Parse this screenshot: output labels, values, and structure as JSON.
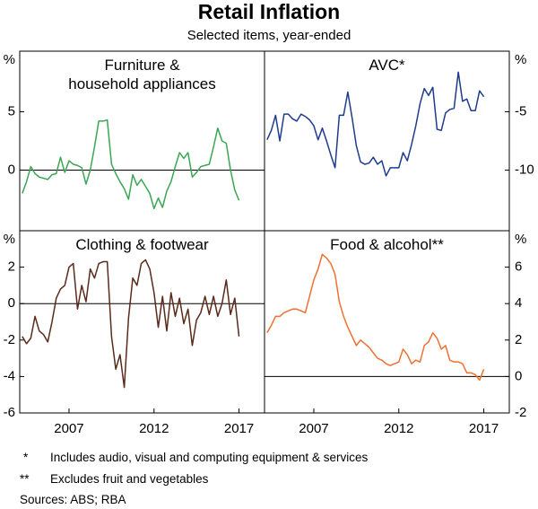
{
  "title": "Retail Inflation",
  "subtitle": "Selected items, year-ended",
  "chart_data": [
    {
      "type": "line",
      "title": "Furniture &\nhousehold appliances",
      "unit": "%",
      "xlim": [
        2004.1,
        2018.5
      ],
      "ylim": [
        -5.2,
        10.2
      ],
      "yticks": [
        5,
        0
      ],
      "zero_line": true,
      "x": [
        2004.25,
        2004.5,
        2004.75,
        2005,
        2005.25,
        2005.5,
        2005.75,
        2006,
        2006.25,
        2006.5,
        2006.75,
        2007,
        2007.25,
        2007.5,
        2007.75,
        2008,
        2008.25,
        2008.5,
        2008.75,
        2009,
        2009.25,
        2009.5,
        2009.75,
        2010,
        2010.25,
        2010.5,
        2010.75,
        2011,
        2011.25,
        2011.5,
        2011.75,
        2012,
        2012.25,
        2012.5,
        2012.75,
        2013,
        2013.25,
        2013.5,
        2013.75,
        2014,
        2014.25,
        2014.5,
        2014.75,
        2015,
        2015.25,
        2015.5,
        2015.75,
        2016,
        2016.25,
        2016.5,
        2016.75,
        2017
      ],
      "series": [
        {
          "color": "#3aa655",
          "values": [
            -2.0,
            -1.0,
            0.3,
            -0.3,
            -0.6,
            -0.7,
            -0.8,
            -0.4,
            -0.3,
            1.1,
            -0.2,
            0.8,
            0.5,
            0.4,
            0.2,
            -1.2,
            0.0,
            2.0,
            4.2,
            4.2,
            4.3,
            0.5,
            -0.3,
            -1.0,
            -1.6,
            -2.5,
            -0.4,
            -1.3,
            -0.8,
            -1.4,
            -2.0,
            -3.3,
            -2.4,
            -3.2,
            -1.8,
            -1.0,
            0.3,
            1.5,
            1.0,
            1.5,
            -0.6,
            -0.2,
            0.3,
            0.4,
            0.5,
            2.0,
            3.6,
            2.5,
            2.3,
            0.0,
            -1.7,
            -2.6
          ]
        }
      ]
    },
    {
      "type": "line",
      "title": "AVC*",
      "unit": "%",
      "xlim": [
        2004.1,
        2018.5
      ],
      "y2lim": [
        -15.2,
        0.2
      ],
      "y2ticks": [
        -5,
        -10
      ],
      "zero_line": false,
      "x": [
        2004.25,
        2004.5,
        2004.75,
        2005,
        2005.25,
        2005.5,
        2005.75,
        2006,
        2006.25,
        2006.5,
        2006.75,
        2007,
        2007.25,
        2007.5,
        2007.75,
        2008,
        2008.25,
        2008.5,
        2008.75,
        2009,
        2009.25,
        2009.5,
        2009.75,
        2010,
        2010.25,
        2010.5,
        2010.75,
        2011,
        2011.25,
        2011.5,
        2011.75,
        2012,
        2012.25,
        2012.5,
        2012.75,
        2013,
        2013.25,
        2013.5,
        2013.75,
        2014,
        2014.25,
        2014.5,
        2014.75,
        2015,
        2015.25,
        2015.5,
        2015.75,
        2016,
        2016.25,
        2016.5,
        2016.75,
        2017
      ],
      "series": [
        {
          "color": "#1f3c8c",
          "axis": "y2",
          "values": [
            -7.4,
            -6.6,
            -5.3,
            -7.5,
            -5.2,
            -5.2,
            -5.6,
            -5.8,
            -5.2,
            -5.4,
            -5.7,
            -6.2,
            -7.4,
            -6.4,
            -7.5,
            -8.7,
            -9.8,
            -5.3,
            -5.3,
            -3.3,
            -5.5,
            -7.9,
            -9.3,
            -9.5,
            -9.4,
            -8.9,
            -9.5,
            -9.2,
            -10.5,
            -9.8,
            -9.8,
            -9.8,
            -8.5,
            -9.2,
            -7.8,
            -6.2,
            -4.3,
            -3.0,
            -3.6,
            -2.9,
            -6.5,
            -6.6,
            -5.1,
            -4.8,
            -4.7,
            -1.6,
            -4.1,
            -3.9,
            -4.9,
            -4.9,
            -3.2,
            -3.7
          ]
        }
      ]
    },
    {
      "type": "line",
      "title": "Clothing & footwear",
      "unit": "%",
      "xlim": [
        2004.1,
        2018.5
      ],
      "xticks": [
        2007,
        2012,
        2017
      ],
      "ylim": [
        -6,
        4
      ],
      "yticks": [
        2,
        0,
        -2,
        -4,
        -6
      ],
      "zero_line": true,
      "x": [
        2004.25,
        2004.5,
        2004.75,
        2005,
        2005.25,
        2005.5,
        2005.75,
        2006,
        2006.25,
        2006.5,
        2006.75,
        2007,
        2007.25,
        2007.5,
        2007.75,
        2008,
        2008.25,
        2008.5,
        2008.75,
        2009,
        2009.25,
        2009.5,
        2009.75,
        2010,
        2010.25,
        2010.5,
        2010.75,
        2011,
        2011.25,
        2011.5,
        2011.75,
        2012,
        2012.25,
        2012.5,
        2012.75,
        2013,
        2013.25,
        2013.5,
        2013.75,
        2014,
        2014.25,
        2014.5,
        2014.75,
        2015,
        2015.25,
        2015.5,
        2015.75,
        2016,
        2016.25,
        2016.5,
        2016.75,
        2017
      ],
      "series": [
        {
          "color": "#5a2a1a",
          "values": [
            -1.8,
            -2.2,
            -1.9,
            -0.7,
            -1.5,
            -1.7,
            -2.1,
            -1.0,
            0.3,
            0.8,
            1.0,
            2.0,
            2.2,
            -0.3,
            1.0,
            0.1,
            1.9,
            1.4,
            2.2,
            2.3,
            2.3,
            -1.8,
            -3.6,
            -2.8,
            -4.6,
            -0.8,
            1.4,
            1.0,
            2.2,
            2.4,
            1.9,
            0.6,
            -1.3,
            0.4,
            -1.5,
            0.6,
            -0.7,
            0.3,
            -1.1,
            -0.3,
            -2.3,
            -0.9,
            -0.5,
            0.4,
            -0.6,
            0.4,
            -0.7,
            0.0,
            1.3,
            -0.6,
            0.3,
            -1.8
          ]
        }
      ]
    },
    {
      "type": "line",
      "title": "Food & alcohol**",
      "unit": "%",
      "xlim": [
        2004.1,
        2018.5
      ],
      "xticks": [
        2007,
        2012,
        2017
      ],
      "y2lim": [
        -2,
        8
      ],
      "y2ticks": [
        6,
        4,
        2,
        0,
        -2
      ],
      "zero_line": true,
      "x": [
        2004.25,
        2004.5,
        2004.75,
        2005,
        2005.25,
        2005.5,
        2005.75,
        2006,
        2006.25,
        2006.5,
        2006.75,
        2007,
        2007.25,
        2007.5,
        2007.75,
        2008,
        2008.25,
        2008.5,
        2008.75,
        2009,
        2009.25,
        2009.5,
        2009.75,
        2010,
        2010.25,
        2010.5,
        2010.75,
        2011,
        2011.25,
        2011.5,
        2011.75,
        2012,
        2012.25,
        2012.5,
        2012.75,
        2013,
        2013.25,
        2013.5,
        2013.75,
        2014,
        2014.25,
        2014.5,
        2014.75,
        2015,
        2015.25,
        2015.5,
        2015.75,
        2016,
        2016.25,
        2016.5,
        2016.75,
        2017
      ],
      "series": [
        {
          "color": "#f07030",
          "axis": "y2",
          "values": [
            2.4,
            2.8,
            3.3,
            3.3,
            3.5,
            3.6,
            3.7,
            3.7,
            3.6,
            3.5,
            4.4,
            5.3,
            5.9,
            6.7,
            6.5,
            6.2,
            5.6,
            4.1,
            3.3,
            2.7,
            2.2,
            1.7,
            2.0,
            1.8,
            1.6,
            1.3,
            1.0,
            0.9,
            0.7,
            0.6,
            0.7,
            0.8,
            1.5,
            1.2,
            0.7,
            0.9,
            0.8,
            1.7,
            1.9,
            2.4,
            2.1,
            1.5,
            1.7,
            0.9,
            0.8,
            0.8,
            0.7,
            0.2,
            0.2,
            0.1,
            -0.2,
            0.4
          ]
        }
      ]
    }
  ],
  "notes": [
    {
      "marker": "*",
      "text": "Includes audio, visual and computing equipment & services"
    },
    {
      "marker": "**",
      "text": "Excludes fruit and vegetables"
    }
  ],
  "source": "Sources: ABS; RBA"
}
